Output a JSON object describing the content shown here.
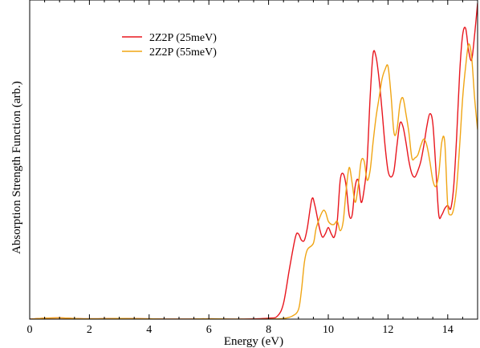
{
  "chart_data": {
    "type": "line",
    "title": "",
    "xlabel": "Energy (eV)",
    "ylabel": "Absorption Strength Function (arb.)",
    "xlim": [
      0,
      15
    ],
    "ylim": [
      0,
      1
    ],
    "x_ticks": [
      0,
      2,
      4,
      6,
      8,
      10,
      12,
      14
    ],
    "y_ticks": [],
    "grid": false,
    "legend_position": "top-left",
    "series": [
      {
        "name": "2Z2P (25meV)",
        "color": "#e8161e",
        "x": [
          0.0,
          0.5,
          1.0,
          1.5,
          2.0,
          3.0,
          4.0,
          5.0,
          6.0,
          7.0,
          8.0,
          8.3,
          8.5,
          8.7,
          8.9,
          9.0,
          9.1,
          9.2,
          9.3,
          9.45,
          9.55,
          9.7,
          9.8,
          9.9,
          10.0,
          10.1,
          10.2,
          10.3,
          10.4,
          10.5,
          10.6,
          10.7,
          10.8,
          10.9,
          11.0,
          11.1,
          11.2,
          11.3,
          11.4,
          11.5,
          11.6,
          11.7,
          11.8,
          11.9,
          12.0,
          12.1,
          12.2,
          12.3,
          12.4,
          12.5,
          12.6,
          12.7,
          12.8,
          12.9,
          13.0,
          13.1,
          13.2,
          13.3,
          13.4,
          13.5,
          13.6,
          13.7,
          13.8,
          13.9,
          14.0,
          14.1,
          14.2,
          14.3,
          14.4,
          14.5,
          14.6,
          14.7,
          14.8,
          14.9,
          15.0
        ],
        "y": [
          0.0,
          0.003,
          0.004,
          0.002,
          0.001,
          0.002,
          0.001,
          0.0,
          0.001,
          0.0,
          0.003,
          0.01,
          0.05,
          0.16,
          0.26,
          0.27,
          0.25,
          0.25,
          0.29,
          0.38,
          0.36,
          0.29,
          0.26,
          0.27,
          0.29,
          0.27,
          0.26,
          0.31,
          0.44,
          0.46,
          0.42,
          0.33,
          0.33,
          0.42,
          0.44,
          0.37,
          0.41,
          0.5,
          0.7,
          0.84,
          0.83,
          0.76,
          0.66,
          0.55,
          0.47,
          0.45,
          0.47,
          0.55,
          0.62,
          0.61,
          0.56,
          0.5,
          0.46,
          0.45,
          0.47,
          0.5,
          0.55,
          0.61,
          0.65,
          0.62,
          0.48,
          0.33,
          0.33,
          0.35,
          0.36,
          0.35,
          0.42,
          0.58,
          0.78,
          0.9,
          0.92,
          0.85,
          0.82,
          0.9,
          1.0
        ]
      },
      {
        "name": "2Z2P (55meV)",
        "color": "#f0a514",
        "x": [
          0.0,
          0.5,
          1.0,
          1.5,
          2.0,
          3.0,
          4.0,
          5.0,
          6.0,
          7.0,
          8.0,
          8.5,
          8.8,
          9.0,
          9.1,
          9.2,
          9.3,
          9.5,
          9.6,
          9.8,
          9.9,
          10.0,
          10.1,
          10.2,
          10.3,
          10.4,
          10.5,
          10.6,
          10.7,
          10.8,
          10.9,
          11.0,
          11.1,
          11.2,
          11.3,
          11.4,
          11.5,
          11.6,
          11.7,
          11.8,
          11.9,
          12.0,
          12.1,
          12.2,
          12.3,
          12.4,
          12.5,
          12.6,
          12.7,
          12.8,
          12.9,
          13.0,
          13.1,
          13.2,
          13.3,
          13.4,
          13.5,
          13.6,
          13.7,
          13.8,
          13.9,
          14.0,
          14.1,
          14.2,
          14.3,
          14.4,
          14.5,
          14.6,
          14.7,
          14.8,
          14.9,
          15.0
        ],
        "y": [
          0.0,
          0.003,
          0.004,
          0.002,
          0.001,
          0.002,
          0.001,
          0.0,
          0.001,
          0.0,
          0.0,
          0.002,
          0.01,
          0.03,
          0.09,
          0.18,
          0.22,
          0.24,
          0.29,
          0.34,
          0.34,
          0.31,
          0.3,
          0.3,
          0.31,
          0.28,
          0.31,
          0.41,
          0.48,
          0.43,
          0.37,
          0.42,
          0.5,
          0.5,
          0.44,
          0.47,
          0.56,
          0.64,
          0.7,
          0.76,
          0.79,
          0.8,
          0.71,
          0.59,
          0.6,
          0.68,
          0.7,
          0.65,
          0.59,
          0.51,
          0.51,
          0.52,
          0.55,
          0.57,
          0.55,
          0.5,
          0.44,
          0.42,
          0.46,
          0.56,
          0.56,
          0.36,
          0.33,
          0.35,
          0.42,
          0.55,
          0.7,
          0.8,
          0.87,
          0.83,
          0.7,
          0.6
        ]
      }
    ]
  }
}
